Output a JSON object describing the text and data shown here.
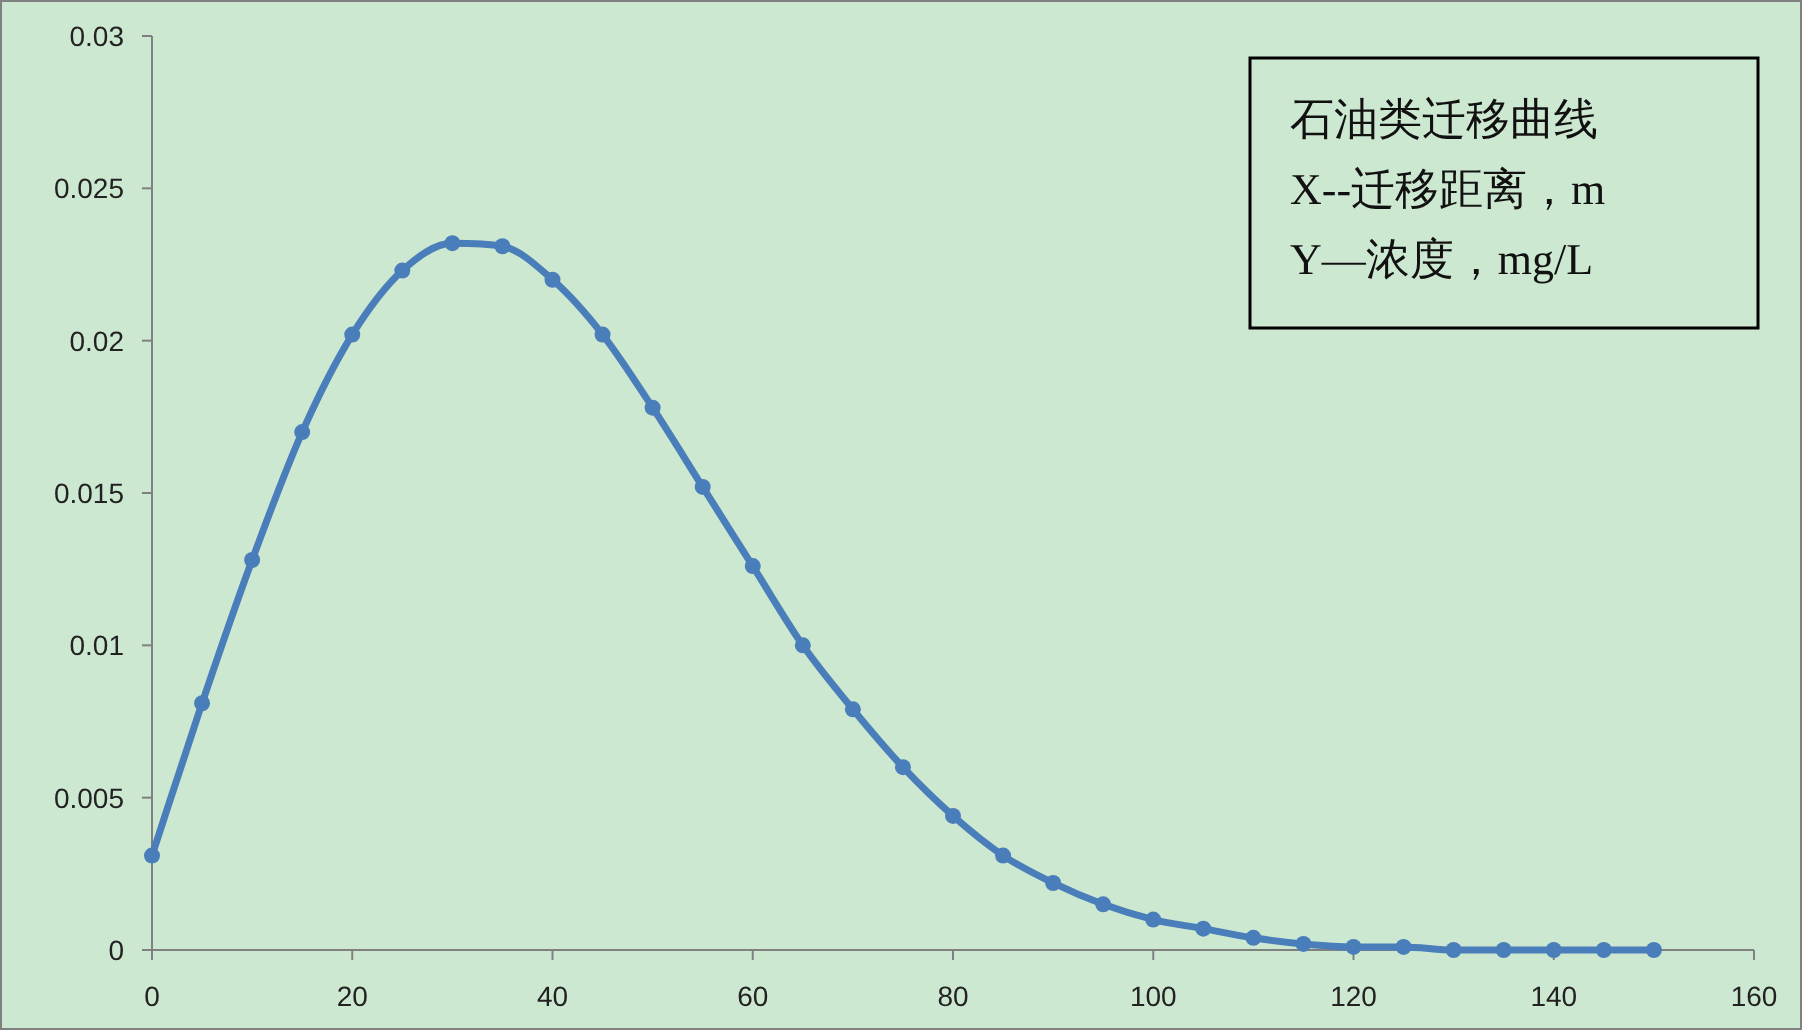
{
  "chart_data": {
    "type": "line",
    "annotations": [
      "石油类迁移曲线",
      "X--迁移距离，m",
      "Y—浓度，mg/L"
    ],
    "x": [
      0,
      5,
      10,
      15,
      20,
      25,
      30,
      35,
      40,
      45,
      50,
      55,
      60,
      65,
      70,
      75,
      80,
      85,
      90,
      95,
      100,
      105,
      110,
      115,
      120,
      125,
      130,
      135,
      140,
      145,
      150
    ],
    "series": [
      {
        "color": "#4a7ebb",
        "values": [
          0.0031,
          0.0081,
          0.0128,
          0.017,
          0.0202,
          0.0223,
          0.0232,
          0.0231,
          0.022,
          0.0202,
          0.0178,
          0.0152,
          0.0126,
          0.01,
          0.0079,
          0.006,
          0.0044,
          0.0031,
          0.0022,
          0.0015,
          0.001,
          0.0007,
          0.0004,
          0.0002,
          0.0001,
          0.0001,
          0,
          0,
          0,
          0,
          0
        ]
      }
    ],
    "xlim": [
      0,
      160
    ],
    "ylim": [
      0,
      0.03
    ],
    "xticks": [
      0,
      20,
      40,
      60,
      80,
      100,
      120,
      140,
      160
    ],
    "yticks": [
      0,
      0.005,
      0.01,
      0.015,
      0.02,
      0.025,
      0.03
    ],
    "marker": "circle",
    "grid": false
  }
}
